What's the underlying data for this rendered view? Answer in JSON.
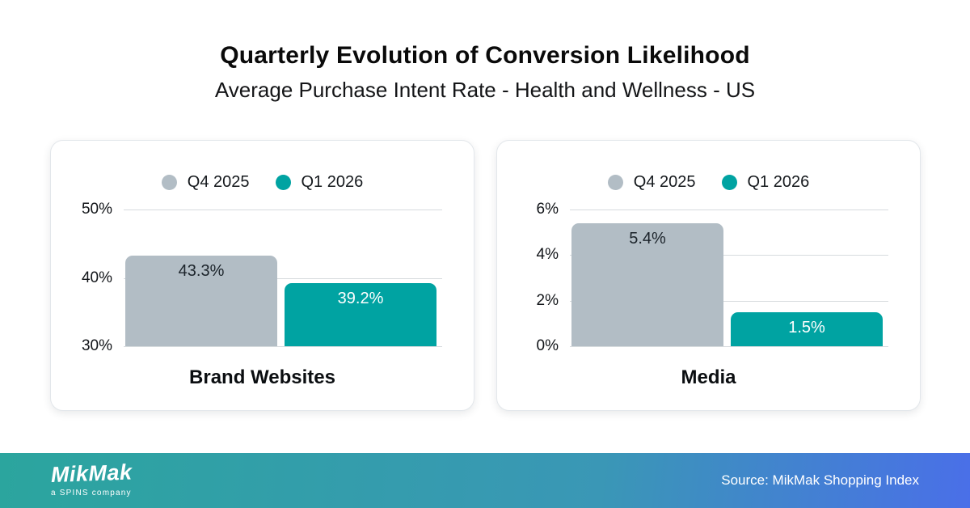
{
  "header": {
    "title": "Quarterly Evolution of Conversion Likelihood",
    "subtitle": "Average Purchase Intent Rate - Health and Wellness - US"
  },
  "legend": {
    "series1": "Q4 2025",
    "series2": "Q1 2026"
  },
  "colors": {
    "q4_2025": "#B2BDC5",
    "q1_2026": "#00A3A2",
    "gridline": "#D7DBDE",
    "footer_gradient_start": "#2BA59E",
    "footer_gradient_mid": "#3A97B6",
    "footer_gradient_end": "#4A6FE8"
  },
  "chart_data": [
    {
      "type": "bar",
      "title": "Brand Websites",
      "categories": [
        "Q4 2025",
        "Q1 2026"
      ],
      "values": [
        43.3,
        39.2
      ],
      "labels": [
        "43.3%",
        "39.2%"
      ],
      "yticks": [
        "50%",
        "40%",
        "30%"
      ],
      "ylim": [
        30,
        50
      ],
      "grid": true,
      "legend_position": "top-center"
    },
    {
      "type": "bar",
      "title": "Media",
      "categories": [
        "Q4 2025",
        "Q1 2026"
      ],
      "values": [
        5.4,
        1.5
      ],
      "labels": [
        "5.4%",
        "1.5%"
      ],
      "yticks": [
        "6%",
        "4%",
        "2%",
        "0%"
      ],
      "ylim": [
        0,
        6
      ],
      "grid": true,
      "legend_position": "top-center"
    }
  ],
  "footer": {
    "logo_text": "MikMak",
    "logo_subtext": "a SPINS company",
    "source": "Source: MikMak Shopping Index"
  }
}
